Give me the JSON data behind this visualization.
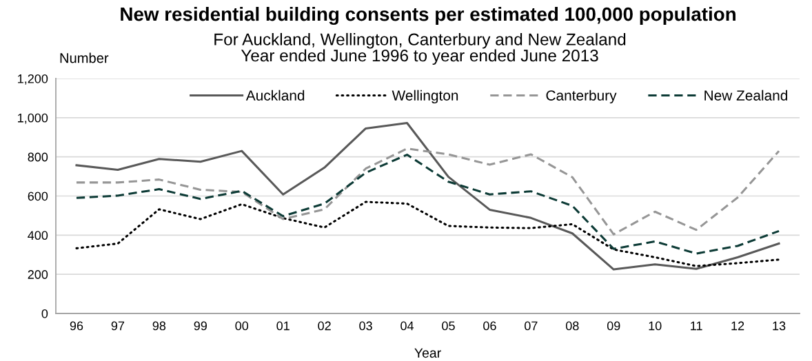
{
  "chart_data": {
    "type": "line",
    "title": "New residential building consents per estimated 100,000 population",
    "subtitle": "For Auckland, Wellington, Canterbury and New Zealand\nYear ended June 1996 to year ended June 2013",
    "xlabel": "Year",
    "ylabel": "Number",
    "categories": [
      "96",
      "97",
      "98",
      "99",
      "00",
      "01",
      "02",
      "03",
      "04",
      "05",
      "06",
      "07",
      "08",
      "09",
      "10",
      "11",
      "12",
      "13"
    ],
    "series": [
      {
        "name": "Auckland",
        "color": "#595959",
        "line_style": "solid",
        "values": [
          757,
          734,
          789,
          775,
          830,
          608,
          745,
          945,
          973,
          698,
          530,
          488,
          409,
          225,
          251,
          228,
          287,
          357
        ]
      },
      {
        "name": "Wellington",
        "color": "#000000",
        "line_style": "dotted",
        "values": [
          333,
          357,
          532,
          482,
          558,
          487,
          439,
          570,
          561,
          447,
          439,
          436,
          456,
          327,
          287,
          242,
          257,
          275
        ]
      },
      {
        "name": "Canterbury",
        "color": "#969696",
        "line_style": "dashed",
        "values": [
          669,
          669,
          684,
          632,
          621,
          482,
          532,
          740,
          842,
          813,
          760,
          813,
          696,
          404,
          520,
          427,
          592,
          830
        ]
      },
      {
        "name": "New Zealand",
        "color": "#0d3b36",
        "line_style": "dashed",
        "values": [
          590,
          602,
          635,
          585,
          626,
          497,
          561,
          719,
          811,
          673,
          608,
          624,
          550,
          330,
          368,
          306,
          345,
          421
        ]
      }
    ],
    "ylim": [
      0,
      1200
    ],
    "yticks": [
      0,
      200,
      400,
      600,
      800,
      {
        "value": 1000,
        "label": "1,000"
      },
      {
        "value": 1200,
        "label": "1,200"
      }
    ],
    "grid": "y",
    "legend": "top right"
  }
}
